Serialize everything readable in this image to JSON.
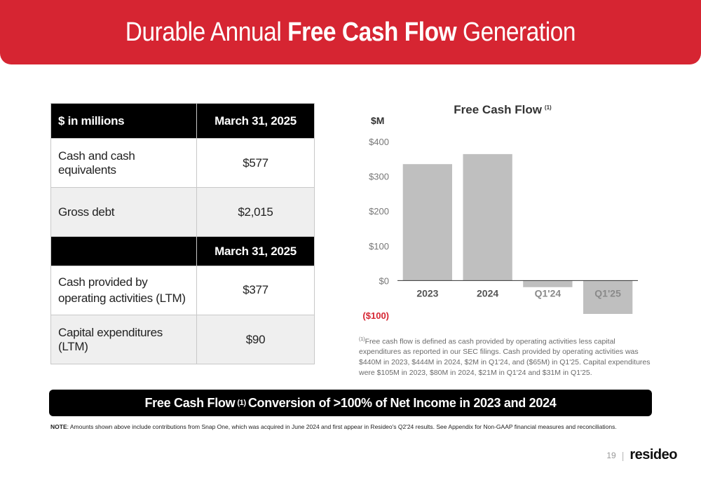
{
  "header": {
    "title_pre": "Durable Annual ",
    "title_bold": "Free Cash Flow",
    "title_post": " Generation"
  },
  "table": {
    "header": {
      "label": "$ in millions",
      "value": "March 31, 2025"
    },
    "row1": {
      "label": "Cash and cash equivalents",
      "value": "$577"
    },
    "row2": {
      "label": "Gross debt",
      "value": "$2,015"
    },
    "header2": {
      "label": "",
      "value": "March 31, 2025"
    },
    "row3": {
      "label": "Cash provided by operating activities (LTM)",
      "value": "$377"
    },
    "row4": {
      "label": "Capital expenditures (LTM)",
      "value": "$90"
    }
  },
  "chart_data": {
    "type": "bar",
    "title": "Free Cash Flow",
    "title_sup": "(1)",
    "ylabel": "$M",
    "categories": [
      "2023",
      "2024",
      "Q1'24",
      "Q1'25"
    ],
    "values": [
      335,
      364,
      -19,
      -96
    ],
    "ylim": [
      -100,
      400
    ],
    "yticks": [
      {
        "value": 400,
        "label": "$400"
      },
      {
        "value": 300,
        "label": "$300"
      },
      {
        "value": 200,
        "label": "$200"
      },
      {
        "value": 100,
        "label": "$100"
      },
      {
        "value": 0,
        "label": "$0"
      },
      {
        "value": -100,
        "label": "($100)"
      }
    ],
    "grid": false,
    "bar_color": "#bfbfbf",
    "negative_tick_color": "#d62532"
  },
  "footnote": {
    "sup": "(1)",
    "text": "Free cash flow is defined as cash provided by operating activities less capital expenditures as reported in our SEC filings. Cash provided by operating activities was $440M in 2023, $444M in 2024, $2M in Q1'24, and ($65M) in Q1'25.  Capital expenditures were $105M in 2023, $80M in 2024, $21M in Q1'24 and $31M in Q1'25."
  },
  "banner": {
    "pre": "Free Cash Flow",
    "sup": "(1)",
    "post": "Conversion of >100% of Net Income in 2023 and 2024"
  },
  "note": {
    "label": "NOTE",
    "text": ":  Amounts shown above include contributions from Snap One, which was acquired in June 2024 and first appear in Resideo's Q2'24 results. See Appendix for Non-GAAP financial measures and reconciliations."
  },
  "footer": {
    "page": "19",
    "separator": "|",
    "logo": "resideo"
  },
  "colors": {
    "brand_red": "#d62532",
    "black": "#000000",
    "bar_gray": "#bfbfbf"
  }
}
